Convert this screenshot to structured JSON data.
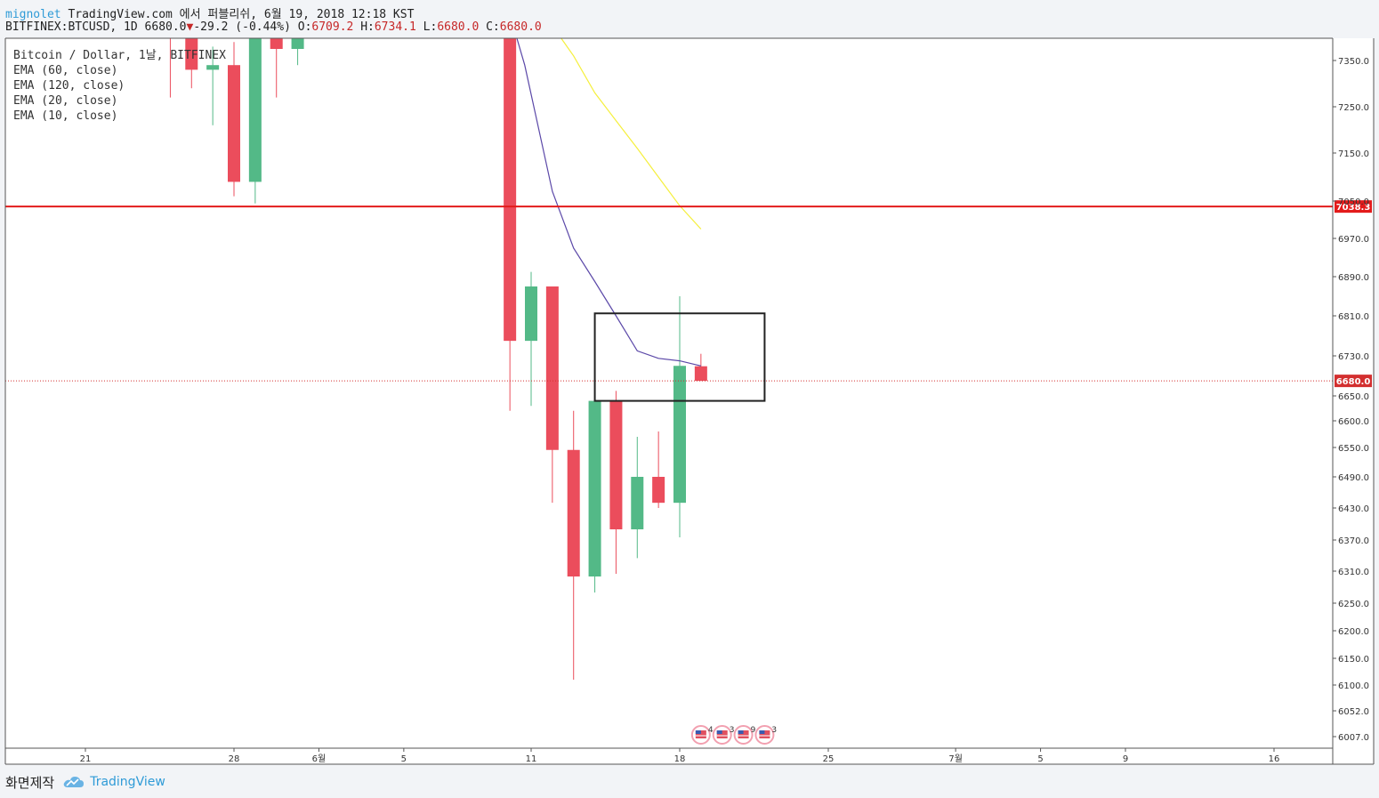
{
  "header": {
    "author": "mignolet",
    "published": "TradingView.com 에서 퍼블리쉬, 6월 19, 2018 12:18 KST",
    "symbol": "BITFINEX:BTCUSD, 1D",
    "last": "6680.0",
    "change_arrow": "▼",
    "change": "-29.2 (-0.44%)",
    "o_label": "O:",
    "o": "6709.2",
    "h_label": "H:",
    "h": "6734.1",
    "l_label": "L:",
    "l": "6680.0",
    "c_label": "C:",
    "c": "6680.0"
  },
  "legend": [
    "Bitcoin / Dollar, 1날, BITFINEX",
    "EMA (60, close)",
    "EMA (120, close)",
    "EMA (20, close)",
    "EMA (10, close)"
  ],
  "footer": {
    "made_with": "화면제작",
    "brand": "TradingView",
    "logo_icon": "cloud-icon"
  },
  "chart_data": {
    "type": "candlestick",
    "colors": {
      "up": "#53b987",
      "down": "#eb4d5c",
      "ema10": "#5b48a8",
      "ema20": "#f5ef3c",
      "level": "#e31b1b",
      "last": "#d32f2f"
    },
    "x_ticks": [
      {
        "label": "21",
        "day": -10
      },
      {
        "label": "28",
        "day": -3
      },
      {
        "label": "6월",
        "day": 1
      },
      {
        "label": "5",
        "day": 5
      },
      {
        "label": "11",
        "day": 11
      },
      {
        "label": "18",
        "day": 18
      },
      {
        "label": "25",
        "day": 25
      },
      {
        "label": "7월",
        "day": 31
      },
      {
        "label": "5",
        "day": 35
      },
      {
        "label": "9",
        "day": 39
      },
      {
        "label": "16",
        "day": 46
      }
    ],
    "y_ticks": [
      7350,
      7250,
      7150,
      7050,
      6970,
      6890,
      6810,
      6730,
      6650,
      6600,
      6550,
      6490,
      6430,
      6370,
      6310,
      6250,
      6200,
      6150,
      6100,
      6052,
      6007
    ],
    "y_tick_labels": [
      "7350.0",
      "7250.0",
      "7150.0",
      "7050.0",
      "6970.0",
      "6890.0",
      "6810.0",
      "6730.0",
      "6650.0",
      "6600.0",
      "6550.0",
      "6490.0",
      "6430.0",
      "6370.0",
      "6310.0",
      "6250.0",
      "6200.0",
      "6150.0",
      "6100.0",
      "6052.0",
      "6007.0"
    ],
    "candles": [
      {
        "day": -6,
        "o": 7440,
        "h": 7480,
        "l": 7270,
        "c": 7420
      },
      {
        "day": -5,
        "o": 7420,
        "h": 7460,
        "l": 7290,
        "c": 7330
      },
      {
        "day": -4,
        "o": 7330,
        "h": 7380,
        "l": 7210,
        "c": 7340
      },
      {
        "day": -3,
        "o": 7340,
        "h": 7390,
        "l": 7060,
        "c": 7090
      },
      {
        "day": -2,
        "o": 7090,
        "h": 7470,
        "l": 7045,
        "c": 7460
      },
      {
        "day": -1,
        "o": 7460,
        "h": 7490,
        "l": 7270,
        "c": 7375
      },
      {
        "day": 0,
        "o": 7375,
        "h": 7420,
        "l": 7340,
        "c": 7400
      },
      {
        "day": 10,
        "o": 7480,
        "h": 7500,
        "l": 6620,
        "c": 6760
      },
      {
        "day": 11,
        "o": 6760,
        "h": 6900,
        "l": 6630,
        "c": 6870
      },
      {
        "day": 12,
        "o": 6870,
        "h": 6870,
        "l": 6440,
        "c": 6545
      },
      {
        "day": 13,
        "o": 6545,
        "h": 6620,
        "l": 6110,
        "c": 6300
      },
      {
        "day": 14,
        "o": 6300,
        "h": 6745,
        "l": 6270,
        "c": 6640
      },
      {
        "day": 15,
        "o": 6640,
        "h": 6660,
        "l": 6305,
        "c": 6390
      },
      {
        "day": 16,
        "o": 6390,
        "h": 6570,
        "l": 6335,
        "c": 6490
      },
      {
        "day": 17,
        "o": 6490,
        "h": 6580,
        "l": 6430,
        "c": 6440
      },
      {
        "day": 18,
        "o": 6440,
        "h": 6850,
        "l": 6375,
        "c": 6710
      },
      {
        "day": 19,
        "o": 6709.2,
        "h": 6734.1,
        "l": 6680.0,
        "c": 6680.0
      }
    ],
    "ema10": [
      [
        10,
        7450
      ],
      [
        10.7,
        7340
      ],
      [
        12,
        7070
      ],
      [
        13,
        6950
      ],
      [
        14,
        6880
      ],
      [
        15,
        6810
      ],
      [
        16,
        6740
      ],
      [
        17,
        6725
      ],
      [
        18,
        6720
      ],
      [
        19,
        6710
      ]
    ],
    "ema20": [
      [
        11.6,
        7480
      ],
      [
        12,
        7425
      ],
      [
        13,
        7360
      ],
      [
        14,
        7280
      ],
      [
        15,
        7220
      ],
      [
        16,
        7160
      ],
      [
        17,
        7100
      ],
      [
        18,
        7040
      ],
      [
        19,
        6990
      ]
    ],
    "horizontal_lines": [
      {
        "price": 7038.3,
        "label": "7038.3",
        "style": "solid"
      },
      {
        "price": 6680.0,
        "label": "6680.0",
        "style": "dotted"
      }
    ],
    "annotation_box": {
      "day_start": 14,
      "day_end": 22,
      "price_top": 6815,
      "price_bottom": 6640
    },
    "event_badges": [
      {
        "day": 19,
        "count": "4"
      },
      {
        "day": 20,
        "count": "3"
      },
      {
        "day": 21,
        "count": "9"
      },
      {
        "day": 22,
        "count": "3"
      }
    ]
  }
}
